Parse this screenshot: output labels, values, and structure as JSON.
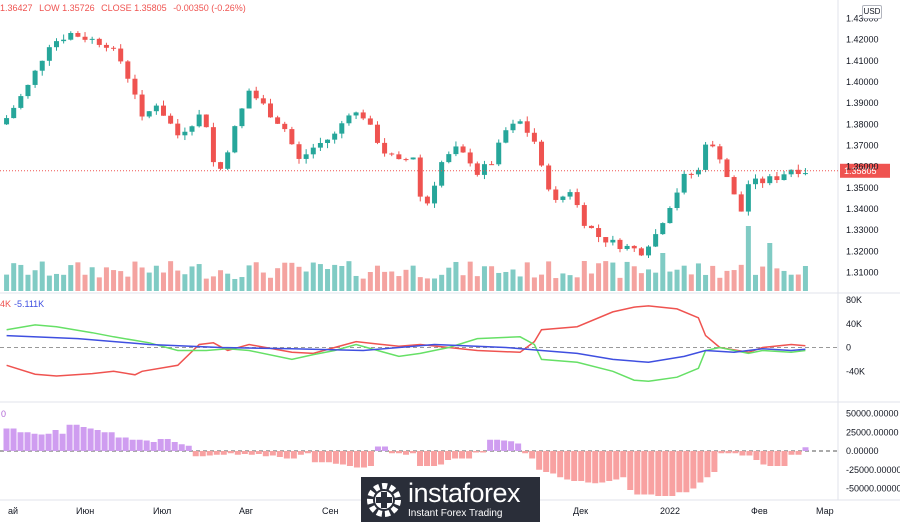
{
  "header": {
    "open_fragment": "1.36427",
    "low": "LOW 1.35726",
    "close": "CLOSE 1.35805",
    "change": "-0.00350 (-0.26%)"
  },
  "currency_button": "USD",
  "colors": {
    "up": "#26a69a",
    "down": "#ef5350",
    "volume_up": "#80cbc4",
    "volume_down": "#f4a3a0",
    "cot_red": "#ef5350",
    "cot_green": "#66e066",
    "cot_blue": "#3f4fe0",
    "hist_pos": "#cf9df0",
    "hist_neg": "#f8a1a1"
  },
  "indicators": {
    "cot_label_a": "4K",
    "cot_label_b": "-5.111K",
    "hist_label": "0"
  },
  "logo": {
    "name": "instaforex",
    "tagline": "Instant Forex Trading"
  },
  "chart_data": [
    {
      "type": "candlestick",
      "title": "",
      "ylim": [
        1.305,
        1.435
      ],
      "y_ticks": [
        "1.43000",
        "1.42000",
        "1.41000",
        "1.40000",
        "1.39000",
        "1.38000",
        "1.37000",
        "1.36000",
        "1.35000",
        "1.34000",
        "1.33000",
        "1.32000",
        "1.31000"
      ],
      "last_price": "1.35805",
      "x_labels": [
        "ай",
        "Июн",
        "Июл",
        "Авг",
        "Сен",
        "",
        "Дек",
        "2022",
        "Фев",
        "Мар"
      ],
      "path_points": [
        [
          0,
          1.383
        ],
        [
          3,
          1.398
        ],
        [
          6,
          1.418
        ],
        [
          9,
          1.423
        ],
        [
          12,
          1.42
        ],
        [
          14,
          1.418
        ],
        [
          16,
          1.41
        ],
        [
          18,
          1.395
        ],
        [
          19,
          1.382
        ],
        [
          21,
          1.39
        ],
        [
          24,
          1.375
        ],
        [
          27,
          1.384
        ],
        [
          28,
          1.38
        ],
        [
          29,
          1.362
        ],
        [
          30,
          1.359
        ],
        [
          32,
          1.378
        ],
        [
          34,
          1.396
        ],
        [
          36,
          1.389
        ],
        [
          37,
          1.385
        ],
        [
          39,
          1.378
        ],
        [
          41,
          1.363
        ],
        [
          43,
          1.369
        ],
        [
          46,
          1.375
        ],
        [
          48,
          1.386
        ],
        [
          50,
          1.384
        ],
        [
          51,
          1.378
        ],
        [
          53,
          1.367
        ],
        [
          55,
          1.362
        ],
        [
          57,
          1.365
        ],
        [
          58,
          1.346
        ],
        [
          59,
          1.343
        ],
        [
          61,
          1.362
        ],
        [
          63,
          1.368
        ],
        [
          65,
          1.363
        ],
        [
          66,
          1.357
        ],
        [
          68,
          1.362
        ],
        [
          70,
          1.377
        ],
        [
          72,
          1.381
        ],
        [
          74,
          1.372
        ],
        [
          75,
          1.359
        ],
        [
          77,
          1.343
        ],
        [
          79,
          1.349
        ],
        [
          81,
          1.334
        ],
        [
          83,
          1.327
        ],
        [
          85,
          1.324
        ],
        [
          87,
          1.322
        ],
        [
          89,
          1.32
        ],
        [
          91,
          1.328
        ],
        [
          93,
          1.342
        ],
        [
          95,
          1.355
        ],
        [
          97,
          1.358
        ],
        [
          98,
          1.372
        ],
        [
          100,
          1.365
        ],
        [
          102,
          1.346
        ],
        [
          103,
          1.339
        ],
        [
          104,
          1.352
        ],
        [
          106,
          1.353
        ],
        [
          108,
          1.355
        ],
        [
          110,
          1.359
        ],
        [
          112,
          1.358
        ]
      ]
    },
    {
      "type": "line",
      "title": "",
      "ylim": [
        -80000,
        80000
      ],
      "y_ticks": [
        "80K",
        "40K",
        "0",
        "-40K"
      ],
      "series": [
        {
          "color": "red",
          "x": [
            0,
            4,
            7,
            12,
            15,
            18,
            19,
            24,
            27,
            29,
            31,
            34,
            40,
            43,
            46,
            49,
            55,
            58,
            62,
            66,
            72,
            74,
            75,
            80,
            85,
            88,
            90,
            94,
            97,
            98,
            100,
            104,
            106,
            110,
            112
          ],
          "values": [
            -30000,
            -45000,
            -48000,
            -44000,
            -40000,
            -46000,
            -40000,
            -30000,
            5000,
            8000,
            -5000,
            5000,
            -8000,
            -10000,
            0,
            10000,
            2000,
            5000,
            0,
            -5000,
            -8000,
            10000,
            30000,
            35000,
            60000,
            68000,
            70000,
            65000,
            50000,
            20000,
            0,
            -8000,
            0,
            5000,
            3000
          ]
        },
        {
          "color": "green",
          "x": [
            0,
            4,
            7,
            12,
            15,
            18,
            20,
            24,
            28,
            31,
            34,
            40,
            43,
            46,
            49,
            55,
            58,
            62,
            66,
            72,
            74,
            75,
            80,
            85,
            88,
            90,
            94,
            97,
            98,
            100,
            104,
            106,
            110,
            112
          ],
          "values": [
            30000,
            38000,
            35000,
            25000,
            18000,
            12000,
            8000,
            -5000,
            -5000,
            -2000,
            -5000,
            -20000,
            -12000,
            -5000,
            5000,
            -15000,
            -10000,
            0,
            15000,
            18000,
            5000,
            -20000,
            -25000,
            -40000,
            -55000,
            -57000,
            -50000,
            -35000,
            -5000,
            0,
            -10000,
            -5000,
            -8000,
            -5000
          ]
        },
        {
          "color": "blue",
          "x": [
            0,
            10,
            20,
            30,
            40,
            50,
            60,
            70,
            75,
            80,
            85,
            90,
            95,
            98,
            102,
            106,
            110,
            112
          ],
          "values": [
            20000,
            15000,
            5000,
            0,
            -2000,
            -5000,
            5000,
            0,
            -5000,
            -10000,
            -20000,
            -25000,
            -15000,
            -5000,
            -8000,
            -2000,
            -5000,
            -3000
          ]
        }
      ]
    },
    {
      "type": "bar",
      "title": "",
      "ylim": [
        -60000,
        60000
      ],
      "y_ticks": [
        "50000.00000",
        "25000.00000",
        "0.00000",
        "-25000.00000",
        "-50000.00000"
      ],
      "values": [
        30000,
        30000,
        25000,
        25000,
        23000,
        22000,
        23000,
        28000,
        23000,
        35000,
        35000,
        32000,
        30000,
        28000,
        25000,
        25000,
        18000,
        18000,
        15000,
        15000,
        14000,
        12000,
        16000,
        16000,
        12000,
        9000,
        7000,
        -7000,
        -7000,
        -6000,
        -5000,
        -5000,
        -3000,
        -5000,
        -4000,
        -5000,
        -4000,
        -7000,
        -6000,
        -8000,
        -10000,
        -10000,
        -5000,
        -3000,
        -15000,
        -15000,
        -15000,
        -17000,
        -18000,
        -20000,
        -22000,
        -22000,
        -20000,
        6000,
        6000,
        -3000,
        -3000,
        -5000,
        -3000,
        -20000,
        -20000,
        -20000,
        -18000,
        -12000,
        -10000,
        -10000,
        -10000,
        -2000,
        -2000,
        15000,
        15000,
        14000,
        13000,
        10000,
        -3000,
        -10000,
        -25000,
        -28000,
        -30000,
        -35000,
        -38000,
        -40000,
        -40000,
        -42000,
        -43000,
        -42000,
        -40000,
        -38000,
        -35000,
        -52000,
        -58000,
        -58000,
        -58000,
        -60000,
        -60000,
        -60000,
        -55000,
        -55000,
        -50000,
        -42000,
        -35000,
        -28000,
        -3000,
        -3000,
        -3000,
        -6000,
        -6000,
        -12000,
        -18000,
        -20000,
        -20000,
        -20000,
        -5000,
        -5000,
        5000
      ]
    }
  ]
}
